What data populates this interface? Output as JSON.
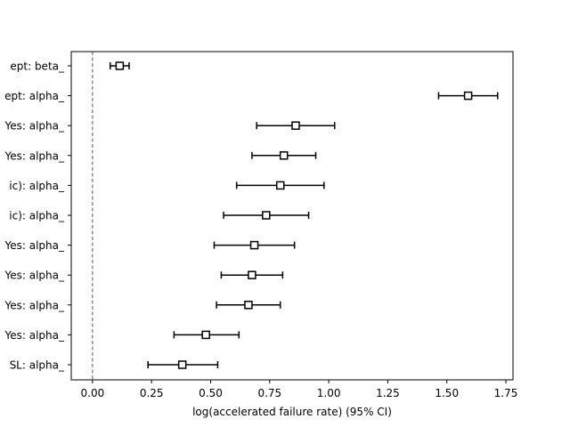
{
  "chart_data": {
    "type": "forest",
    "xlabel": "log(accelerated failure rate) (95% CI)",
    "xlim": [
      -0.09,
      1.78
    ],
    "xticks": [
      0.0,
      0.25,
      0.5,
      0.75,
      1.0,
      1.25,
      1.5,
      1.75
    ],
    "xtick_labels": [
      "0.00",
      "0.25",
      "0.50",
      "0.75",
      "1.00",
      "1.25",
      "1.50",
      "1.75"
    ],
    "reference_line": 0,
    "rows": [
      {
        "label": "ept: beta_",
        "estimate": 0.115,
        "lower": 0.075,
        "upper": 0.155
      },
      {
        "label": "ept: alpha_",
        "estimate": 1.59,
        "lower": 1.465,
        "upper": 1.715
      },
      {
        "label": "Yes: alpha_",
        "estimate": 0.86,
        "lower": 0.695,
        "upper": 1.025
      },
      {
        "label": "Yes: alpha_",
        "estimate": 0.81,
        "lower": 0.675,
        "upper": 0.945
      },
      {
        "label": "ic): alpha_",
        "estimate": 0.795,
        "lower": 0.61,
        "upper": 0.98
      },
      {
        "label": "ic): alpha_",
        "estimate": 0.735,
        "lower": 0.555,
        "upper": 0.915
      },
      {
        "label": "Yes: alpha_",
        "estimate": 0.685,
        "lower": 0.515,
        "upper": 0.855
      },
      {
        "label": "Yes: alpha_",
        "estimate": 0.675,
        "lower": 0.545,
        "upper": 0.805
      },
      {
        "label": "Yes: alpha_",
        "estimate": 0.66,
        "lower": 0.525,
        "upper": 0.795
      },
      {
        "label": "Yes: alpha_",
        "estimate": 0.48,
        "lower": 0.345,
        "upper": 0.62
      },
      {
        "label": "SL: alpha_",
        "estimate": 0.38,
        "lower": 0.235,
        "upper": 0.53
      }
    ],
    "colors": {
      "marker_edge": "#000000",
      "marker_fill": "#ffffff",
      "reference_line": "#555555"
    }
  }
}
